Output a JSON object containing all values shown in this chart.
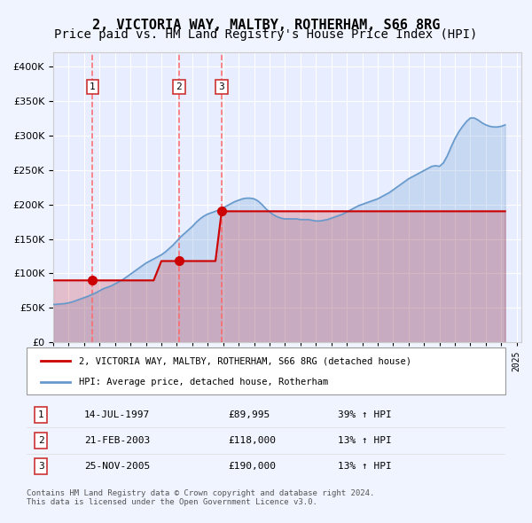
{
  "title": "2, VICTORIA WAY, MALTBY, ROTHERHAM, S66 8RG",
  "subtitle": "Price paid vs. HM Land Registry's House Price Index (HPI)",
  "legend_label_red": "2, VICTORIA WAY, MALTBY, ROTHERHAM, S66 8RG (detached house)",
  "legend_label_blue": "HPI: Average price, detached house, Rotherham",
  "footer": "Contains HM Land Registry data © Crown copyright and database right 2024.\nThis data is licensed under the Open Government Licence v3.0.",
  "transactions": [
    {
      "num": 1,
      "date": "14-JUL-1997",
      "price": 89995,
      "change": "39%",
      "direction": "↑"
    },
    {
      "num": 2,
      "date": "21-FEB-2003",
      "price": 118000,
      "change": "13%",
      "direction": "↑"
    },
    {
      "num": 3,
      "date": "25-NOV-2005",
      "price": 190000,
      "change": "13%",
      "direction": "↑"
    }
  ],
  "transaction_years": [
    1997.54,
    2003.14,
    2005.9
  ],
  "transaction_prices": [
    89995,
    118000,
    190000
  ],
  "hpi_years": [
    1995.0,
    1995.25,
    1995.5,
    1995.75,
    1996.0,
    1996.25,
    1996.5,
    1996.75,
    1997.0,
    1997.25,
    1997.5,
    1997.75,
    1998.0,
    1998.25,
    1998.5,
    1998.75,
    1999.0,
    1999.25,
    1999.5,
    1999.75,
    2000.0,
    2000.25,
    2000.5,
    2000.75,
    2001.0,
    2001.25,
    2001.5,
    2001.75,
    2002.0,
    2002.25,
    2002.5,
    2002.75,
    2003.0,
    2003.25,
    2003.5,
    2003.75,
    2004.0,
    2004.25,
    2004.5,
    2004.75,
    2005.0,
    2005.25,
    2005.5,
    2005.75,
    2006.0,
    2006.25,
    2006.5,
    2006.75,
    2007.0,
    2007.25,
    2007.5,
    2007.75,
    2008.0,
    2008.25,
    2008.5,
    2008.75,
    2009.0,
    2009.25,
    2009.5,
    2009.75,
    2010.0,
    2010.25,
    2010.5,
    2010.75,
    2011.0,
    2011.25,
    2011.5,
    2011.75,
    2012.0,
    2012.25,
    2012.5,
    2012.75,
    2013.0,
    2013.25,
    2013.5,
    2013.75,
    2014.0,
    2014.25,
    2014.5,
    2014.75,
    2015.0,
    2015.25,
    2015.5,
    2015.75,
    2016.0,
    2016.25,
    2016.5,
    2016.75,
    2017.0,
    2017.25,
    2017.5,
    2017.75,
    2018.0,
    2018.25,
    2018.5,
    2018.75,
    2019.0,
    2019.25,
    2019.5,
    2019.75,
    2020.0,
    2020.25,
    2020.5,
    2020.75,
    2021.0,
    2021.25,
    2021.5,
    2021.75,
    2022.0,
    2022.25,
    2022.5,
    2022.75,
    2023.0,
    2023.25,
    2023.5,
    2023.75,
    2024.0,
    2024.25
  ],
  "hpi_values": [
    55000,
    55500,
    56000,
    56500,
    57500,
    59000,
    61000,
    63000,
    65000,
    67000,
    69500,
    72000,
    75000,
    78000,
    80000,
    82000,
    85000,
    88000,
    91000,
    95000,
    99000,
    103000,
    107000,
    111000,
    115000,
    118000,
    121000,
    124000,
    127000,
    131000,
    136000,
    141000,
    147000,
    153000,
    158000,
    163000,
    168000,
    174000,
    179000,
    183000,
    186000,
    188000,
    190000,
    192000,
    195000,
    198000,
    201000,
    204000,
    206000,
    208000,
    209000,
    209000,
    208000,
    205000,
    200000,
    194000,
    189000,
    185000,
    182000,
    180000,
    179000,
    179000,
    179000,
    179000,
    178000,
    178000,
    178000,
    177000,
    176000,
    176000,
    177000,
    178000,
    180000,
    182000,
    184000,
    186000,
    189000,
    192000,
    195000,
    198000,
    200000,
    202000,
    204000,
    206000,
    208000,
    211000,
    214000,
    217000,
    221000,
    225000,
    229000,
    233000,
    237000,
    240000,
    243000,
    246000,
    249000,
    252000,
    255000,
    256000,
    255000,
    260000,
    270000,
    283000,
    295000,
    305000,
    313000,
    320000,
    325000,
    325000,
    322000,
    318000,
    315000,
    313000,
    312000,
    312000,
    313000,
    315000
  ],
  "price_paid_years": [
    1995.0,
    1995.5,
    1996.0,
    1996.5,
    1997.0,
    1997.25,
    1997.5,
    1997.54,
    1997.75,
    1998.0,
    1998.5,
    1999.0,
    1999.5,
    2000.0,
    2000.5,
    2001.0,
    2001.5,
    2002.0,
    2002.5,
    2003.0,
    2003.14,
    2003.5,
    2004.0,
    2004.5,
    2005.0,
    2005.5,
    2005.9,
    2006.0,
    2006.5,
    2007.0,
    2007.5,
    2008.0,
    2008.5,
    2009.0,
    2009.5,
    2010.0,
    2010.5,
    2011.0,
    2011.5,
    2012.0,
    2012.5,
    2013.0,
    2013.5,
    2014.0,
    2014.5,
    2015.0,
    2015.5,
    2016.0,
    2016.5,
    2017.0,
    2017.5,
    2018.0,
    2018.5,
    2019.0,
    2019.5,
    2020.0,
    2020.5,
    2021.0,
    2021.5,
    2022.0,
    2022.5,
    2023.0,
    2023.5,
    2024.0,
    2024.25
  ],
  "price_paid_values": [
    89995,
    89995,
    89995,
    89995,
    89995,
    89995,
    89995,
    89995,
    89995,
    89995,
    89995,
    89995,
    89995,
    89995,
    89995,
    89995,
    89995,
    118000,
    118000,
    118000,
    118000,
    118000,
    118000,
    118000,
    118000,
    118000,
    190000,
    190000,
    190000,
    190000,
    190000,
    190000,
    190000,
    190000,
    190000,
    190000,
    190000,
    190000,
    190000,
    190000,
    190000,
    190000,
    190000,
    190000,
    190000,
    190000,
    190000,
    190000,
    190000,
    190000,
    190000,
    190000,
    190000,
    190000,
    190000,
    190000,
    190000,
    190000,
    190000,
    190000,
    190000,
    190000,
    190000,
    190000,
    190000
  ],
  "ylim": [
    0,
    420000
  ],
  "xlim_start": 1995.0,
  "xlim_end": 2025.3,
  "background_color": "#f0f4ff",
  "plot_background": "#e8eeff",
  "red_color": "#cc0000",
  "blue_color": "#6699cc",
  "grid_color": "#ffffff",
  "dashed_line_color": "#ff6666",
  "title_fontsize": 11,
  "subtitle_fontsize": 10
}
